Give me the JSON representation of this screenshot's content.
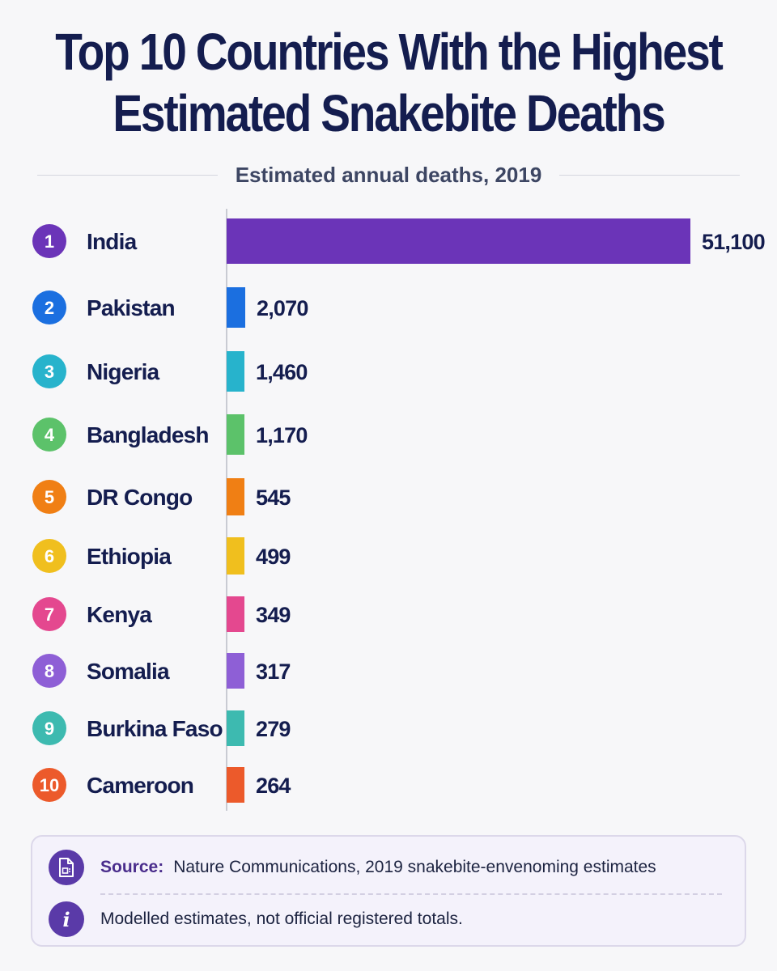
{
  "chart_data": {
    "type": "bar",
    "orientation": "horizontal",
    "title": "Top 10 Countries With the Highest Estimated Snakebite Deaths",
    "subtitle": "Estimated annual deaths, 2019",
    "categories": [
      "India",
      "Pakistan",
      "Nigeria",
      "Bangladesh",
      "DR Congo",
      "Ethiopia",
      "Kenya",
      "Somalia",
      "Burkina Faso",
      "Cameroon"
    ],
    "ranks": [
      "1",
      "2",
      "3",
      "4",
      "5",
      "6",
      "7",
      "8",
      "9",
      "10"
    ],
    "values": [
      51100,
      2070,
      1460,
      1170,
      545,
      499,
      349,
      317,
      279,
      264
    ],
    "value_labels": [
      "51,100",
      "2,070",
      "1,460",
      "1,170",
      "545",
      "499",
      "349",
      "317",
      "279",
      "264"
    ],
    "colors": [
      "#6b34b8",
      "#1b6fe0",
      "#27b3cc",
      "#5cc26a",
      "#f07f14",
      "#f0bf1e",
      "#e4488f",
      "#8e5fd6",
      "#3dbab0",
      "#ec5a2b"
    ],
    "grid": false,
    "legend": "none"
  },
  "source": {
    "label": "Source:",
    "text": "Nature Communications, 2019 snakebite-envenoming estimates",
    "icon": "document-icon"
  },
  "note": {
    "text": "Modelled estimates, not official registered totals.",
    "icon": "info-icon",
    "glyph": "i"
  }
}
